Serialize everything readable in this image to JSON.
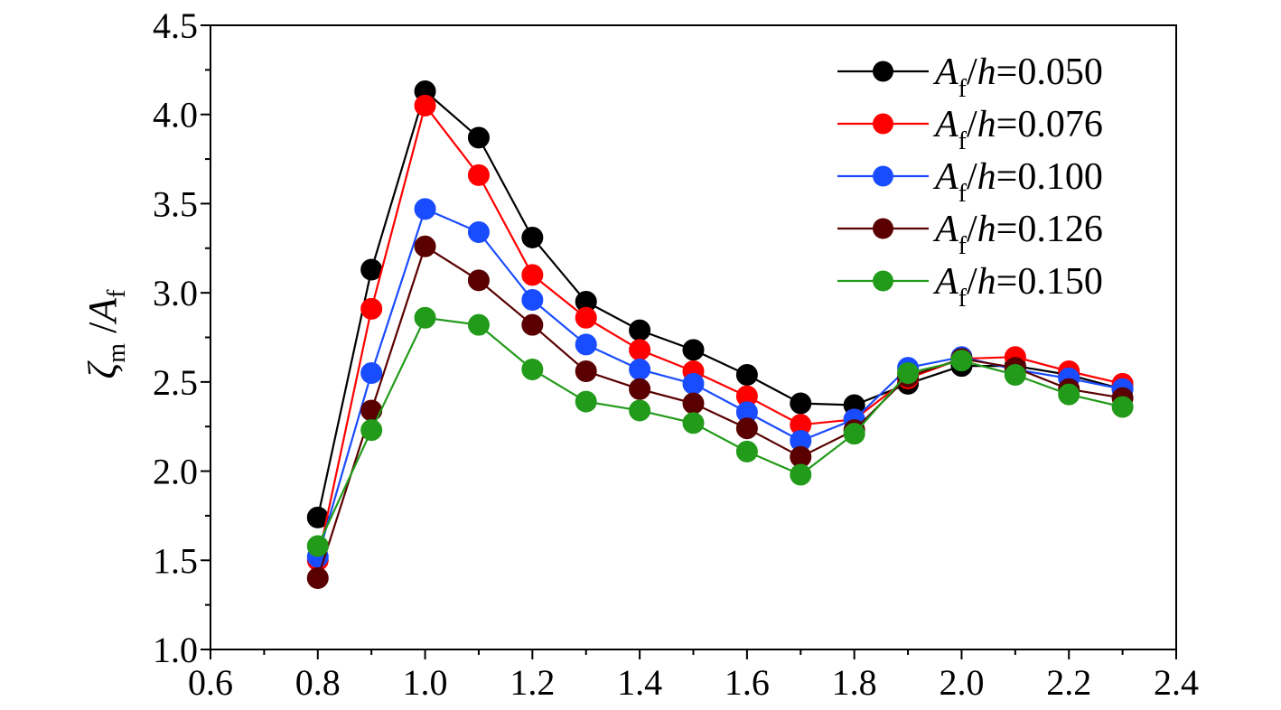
{
  "chart_data": {
    "type": "line",
    "xlabel": "",
    "ylabel": {
      "main": "ζ",
      "sub1": "m",
      "mid": "/A",
      "sub2": "f"
    },
    "xlim": [
      0.6,
      2.4
    ],
    "ylim": [
      1.0,
      4.5
    ],
    "x_ticks": [
      "0.6",
      "0.8",
      "1.0",
      "1.2",
      "1.4",
      "1.6",
      "1.8",
      "2.0",
      "2.2",
      "2.4"
    ],
    "y_ticks": [
      "1.0",
      "1.5",
      "2.0",
      "2.5",
      "3.0",
      "3.5",
      "4.0",
      "4.5"
    ],
    "x": [
      0.8,
      0.9,
      1.0,
      1.1,
      1.2,
      1.3,
      1.4,
      1.5,
      1.6,
      1.7,
      1.8,
      1.9,
      2.0,
      2.1,
      2.2,
      2.3
    ],
    "grid": false,
    "legend_position": "top-right",
    "series": [
      {
        "name": "A_f/h=0.050",
        "label_prefix": "A",
        "label_sub": "f",
        "label_h": "/h",
        "label_value": "=0.050",
        "color": "#000000",
        "values": [
          1.74,
          3.13,
          4.13,
          3.87,
          3.31,
          2.95,
          2.79,
          2.68,
          2.54,
          2.38,
          2.37,
          2.49,
          2.59,
          2.59,
          2.54,
          2.46
        ]
      },
      {
        "name": "A_f/h=0.076",
        "label_prefix": "A",
        "label_sub": "f",
        "label_h": "/h",
        "label_value": "=0.076",
        "color": "#ff0000",
        "values": [
          1.5,
          2.91,
          4.05,
          3.66,
          3.1,
          2.86,
          2.68,
          2.56,
          2.42,
          2.26,
          2.29,
          2.52,
          2.63,
          2.64,
          2.56,
          2.49
        ]
      },
      {
        "name": "A_f/h=0.100",
        "label_prefix": "A",
        "label_sub": "f",
        "label_h": "/h",
        "label_value": "=0.100",
        "color": "#1a4cff",
        "values": [
          1.52,
          2.55,
          3.47,
          3.34,
          2.96,
          2.71,
          2.57,
          2.49,
          2.33,
          2.17,
          2.29,
          2.58,
          2.64,
          2.57,
          2.52,
          2.46
        ]
      },
      {
        "name": "A_f/h=0.126",
        "label_prefix": "A",
        "label_sub": "f",
        "label_h": "/h",
        "label_value": "=0.126",
        "color": "#5a0000",
        "values": [
          1.4,
          2.34,
          3.26,
          3.07,
          2.82,
          2.56,
          2.46,
          2.38,
          2.24,
          2.08,
          2.23,
          2.53,
          2.63,
          2.58,
          2.46,
          2.41
        ]
      },
      {
        "name": "A_f/h=0.150",
        "label_prefix": "A",
        "label_sub": "f",
        "label_h": "/h",
        "label_value": "=0.150",
        "color": "#229a1a",
        "values": [
          1.58,
          2.23,
          2.86,
          2.82,
          2.57,
          2.39,
          2.34,
          2.27,
          2.11,
          1.98,
          2.21,
          2.55,
          2.62,
          2.54,
          2.43,
          2.36
        ]
      }
    ]
  }
}
